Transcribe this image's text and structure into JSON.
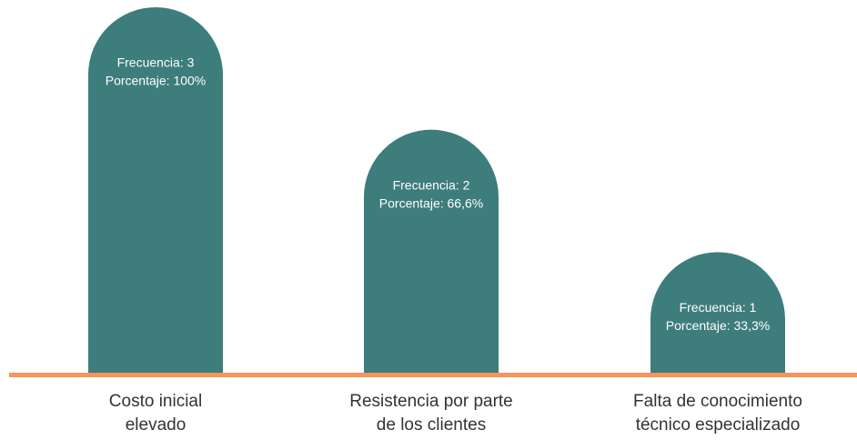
{
  "chart_data": {
    "type": "bar",
    "categories": [
      "Costo inicial\nelevado",
      "Resistencia por parte\nde los clientes",
      "Falta de conocimiento\ntécnico especializado"
    ],
    "series": [
      {
        "name": "Frecuencia",
        "color": "#3d7d7b",
        "values": [
          3,
          2,
          1
        ],
        "value_labels": [
          "Frecuencia:  3",
          "Frecuencia:  2",
          "Frecuencia:  1"
        ]
      },
      {
        "name": "Porcentaje",
        "color": "#3d7d7b",
        "values": [
          100,
          66.6,
          33.3
        ],
        "value_labels": [
          "Porcentaje: 100%",
          "Porcentaje: 66,6%",
          "Porcentaje: 33,3%"
        ]
      }
    ],
    "baseline_color": "#f4955a"
  }
}
